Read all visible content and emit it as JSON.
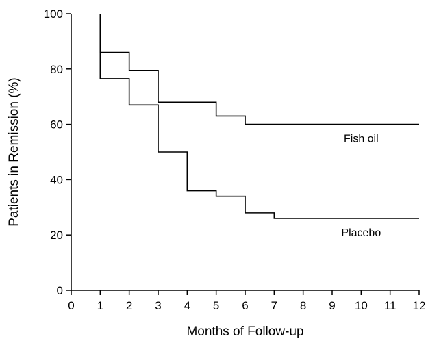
{
  "chart_data": {
    "type": "line",
    "step": true,
    "xlabel": "Months of Follow-up",
    "ylabel": "Patients in Remission (%)",
    "xlim": [
      0,
      12
    ],
    "ylim": [
      0,
      100
    ],
    "x_ticks": [
      0,
      1,
      2,
      3,
      4,
      5,
      6,
      7,
      8,
      9,
      10,
      11,
      12
    ],
    "y_ticks": [
      0,
      20,
      40,
      60,
      80,
      100
    ],
    "grid": false,
    "series": [
      {
        "name": "Fish oil",
        "x": [
          1,
          1,
          2,
          3,
          5,
          6,
          12
        ],
        "y": [
          100,
          86,
          79.5,
          68,
          63,
          60,
          60
        ]
      },
      {
        "name": "Placebo",
        "x": [
          1,
          1,
          2,
          3,
          4,
          5,
          6,
          7,
          12
        ],
        "y": [
          100,
          76.5,
          67,
          50,
          36,
          34,
          28,
          26,
          26
        ]
      }
    ]
  }
}
